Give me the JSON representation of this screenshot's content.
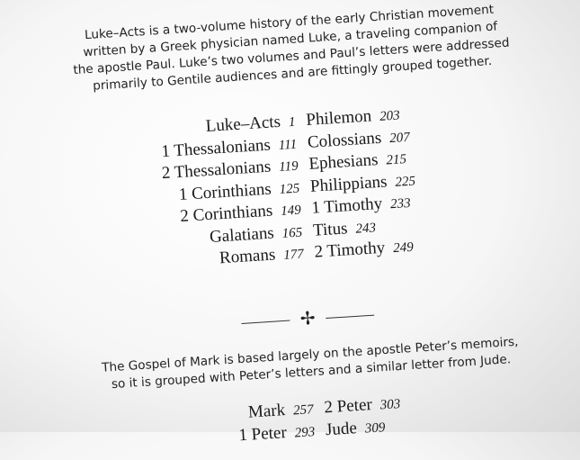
{
  "intro_lines": [
    "Luke–Acts is a two-volume history of the early Christian movement",
    "written by a Greek physician named Luke, a traveling companion of",
    "the apostle Paul. Luke’s two volumes and Paul’s letters were addressed",
    "primarily to Gentile audiences and are fittingly grouped together."
  ],
  "group1_left": [
    {
      "name": "Luke–Acts",
      "page": "1"
    },
    {
      "name": "1 Thessalonians",
      "page": "111"
    },
    {
      "name": "2 Thessalonians",
      "page": "119"
    },
    {
      "name": "1 Corinthians",
      "page": "125"
    },
    {
      "name": "2 Corinthians",
      "page": "149"
    },
    {
      "name": "Galatians",
      "page": "165"
    },
    {
      "name": "Romans",
      "page": "177"
    }
  ],
  "group1_right": [
    {
      "name": "Philemon",
      "page": "203"
    },
    {
      "name": "Colossians",
      "page": "207"
    },
    {
      "name": "Ephesians",
      "page": "215"
    },
    {
      "name": "Philippians",
      "page": "225"
    },
    {
      "name": "1 Timothy",
      "page": "233"
    },
    {
      "name": "Titus",
      "page": "243"
    },
    {
      "name": "2 Timothy",
      "page": "249"
    }
  ],
  "ornament": "✢",
  "mark_lines": [
    "The Gospel of Mark is based largely on the apostle Peter’s memoirs,",
    "so it is grouped with Peter’s letters and a similar letter from Jude."
  ],
  "group2_left": [
    {
      "name": "Mark",
      "page": "257"
    },
    {
      "name": "1 Peter",
      "page": "293"
    }
  ],
  "group2_right": [
    {
      "name": "2 Peter",
      "page": "303"
    },
    {
      "name": "Jude",
      "page": "309"
    }
  ]
}
